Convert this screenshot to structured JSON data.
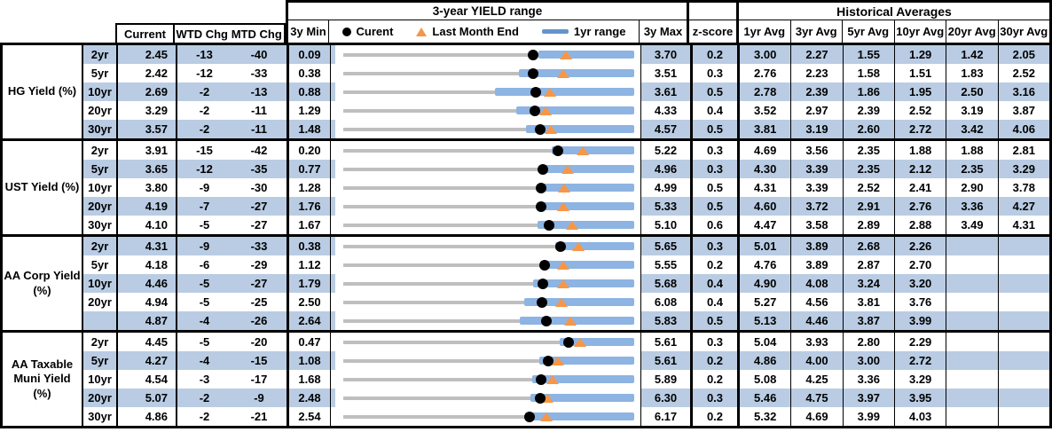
{
  "header": {
    "chart_title": "3-year YIELD range",
    "hist_title": "Historical Averages",
    "current": "Current",
    "wtd_chg": "WTD Chg",
    "mtd_chg": "MTD Chg",
    "min_3y": "3y Min",
    "max_3y": "3y Max",
    "z_score": "z-score",
    "avg_cols": [
      "1yr Avg",
      "3yr Avg",
      "5yr Avg",
      "10yr Avg",
      "20yr Avg",
      "30yr Avg"
    ],
    "legend": {
      "current": "Curent",
      "last_month_end": "Last Month End",
      "range_1yr": "1yr range"
    }
  },
  "colors": {
    "stripe": "#b9cce3",
    "bar": "#8db4e2",
    "legend_bar": "#6593cd",
    "track": "#bfbfbf",
    "triangle": "#f79646",
    "dot": "#000000"
  },
  "chart_data": {
    "type": "table",
    "title": "3-year YIELD range",
    "legend_entries": [
      "Curent",
      "Last Month End",
      "1yr range"
    ],
    "columns": [
      "Current",
      "WTD Chg",
      "MTD Chg",
      "3y Min",
      "3-year YIELD range",
      "3y Max",
      "z-score",
      "1yr Avg",
      "3yr Avg",
      "5yr Avg",
      "10yr Avg",
      "20yr Avg",
      "30yr Avg"
    ],
    "range_chart_note": "Each row plots a track from 3y Min to 3y Max; blue bar = 1yr range (low estimated as bar_lo, high = 3y Max); black dot = Current; orange triangle = last month end (Current - MTD Chg/100).",
    "sections": [
      {
        "label_lines": [
          "HG Yield (%)"
        ],
        "rows": [
          {
            "tenor": "2yr",
            "current": "2.45",
            "wtd": "-13",
            "mtd": "-40",
            "min": "0.09",
            "max": "3.70",
            "z": "0.2",
            "avgs": [
              "3.00",
              "2.27",
              "1.55",
              "1.29",
              "1.42",
              "2.05"
            ],
            "bar_lo": 2.51
          },
          {
            "tenor": "5yr",
            "current": "2.42",
            "wtd": "-12",
            "mtd": "-33",
            "min": "0.38",
            "max": "3.51",
            "z": "0.3",
            "avgs": [
              "2.76",
              "2.23",
              "1.58",
              "1.51",
              "1.83",
              "2.52"
            ],
            "bar_lo": 2.27
          },
          {
            "tenor": "10yr",
            "current": "2.69",
            "wtd": "-2",
            "mtd": "-13",
            "min": "0.88",
            "max": "3.61",
            "z": "0.5",
            "avgs": [
              "2.78",
              "2.39",
              "1.86",
              "1.95",
              "2.50",
              "3.16"
            ],
            "bar_lo": 2.3
          },
          {
            "tenor": "20yr",
            "current": "3.29",
            "wtd": "-2",
            "mtd": "-11",
            "min": "1.29",
            "max": "4.33",
            "z": "0.4",
            "avgs": [
              "3.52",
              "2.97",
              "2.39",
              "2.52",
              "3.19",
              "3.87"
            ],
            "bar_lo": 3.1
          },
          {
            "tenor": "30yr",
            "current": "3.57",
            "wtd": "-2",
            "mtd": "-11",
            "min": "1.48",
            "max": "4.57",
            "z": "0.5",
            "avgs": [
              "3.81",
              "3.19",
              "2.60",
              "2.72",
              "3.42",
              "4.06"
            ],
            "bar_lo": 3.42
          }
        ]
      },
      {
        "label_lines": [
          "UST Yield (%)"
        ],
        "rows": [
          {
            "tenor": "2yr",
            "current": "3.91",
            "wtd": "-15",
            "mtd": "-42",
            "min": "0.20",
            "max": "5.22",
            "z": "0.3",
            "avgs": [
              "4.69",
              "3.56",
              "2.35",
              "1.88",
              "1.88",
              "2.81"
            ],
            "bar_lo": 3.8
          },
          {
            "tenor": "5yr",
            "current": "3.65",
            "wtd": "-12",
            "mtd": "-35",
            "min": "0.77",
            "max": "4.96",
            "z": "0.3",
            "avgs": [
              "4.30",
              "3.39",
              "2.35",
              "2.12",
              "2.35",
              "3.29"
            ],
            "bar_lo": 3.63
          },
          {
            "tenor": "10yr",
            "current": "3.80",
            "wtd": "-9",
            "mtd": "-30",
            "min": "1.28",
            "max": "4.99",
            "z": "0.5",
            "avgs": [
              "4.31",
              "3.39",
              "2.52",
              "2.41",
              "2.90",
              "3.78"
            ],
            "bar_lo": 3.78
          },
          {
            "tenor": "20yr",
            "current": "4.19",
            "wtd": "-7",
            "mtd": "-27",
            "min": "1.76",
            "max": "5.33",
            "z": "0.5",
            "avgs": [
              "4.60",
              "3.72",
              "2.91",
              "2.76",
              "3.36",
              "4.27"
            ],
            "bar_lo": 4.13
          },
          {
            "tenor": "30yr",
            "current": "4.10",
            "wtd": "-5",
            "mtd": "-27",
            "min": "1.67",
            "max": "5.10",
            "z": "0.6",
            "avgs": [
              "4.47",
              "3.58",
              "2.89",
              "2.88",
              "3.49",
              "4.31"
            ],
            "bar_lo": 3.96
          }
        ]
      },
      {
        "label_lines": [
          "AA Corp Yield",
          "(%)"
        ],
        "rows": [
          {
            "tenor": "2yr",
            "current": "4.31",
            "wtd": "-9",
            "mtd": "-33",
            "min": "0.38",
            "max": "5.65",
            "z": "0.3",
            "avgs": [
              "5.01",
              "3.89",
              "2.68",
              "2.26",
              "",
              ""
            ],
            "bar_lo": 4.22
          },
          {
            "tenor": "5yr",
            "current": "4.18",
            "wtd": "-6",
            "mtd": "-29",
            "min": "1.12",
            "max": "5.55",
            "z": "0.2",
            "avgs": [
              "4.76",
              "3.89",
              "2.87",
              "2.70",
              "",
              ""
            ],
            "bar_lo": 4.12
          },
          {
            "tenor": "10yr",
            "current": "4.46",
            "wtd": "-5",
            "mtd": "-27",
            "min": "1.79",
            "max": "5.68",
            "z": "0.4",
            "avgs": [
              "4.90",
              "4.08",
              "3.24",
              "3.20",
              "",
              ""
            ],
            "bar_lo": 4.33
          },
          {
            "tenor": "20yr",
            "current": "4.94",
            "wtd": "-5",
            "mtd": "-25",
            "min": "2.50",
            "max": "6.08",
            "z": "0.4",
            "avgs": [
              "5.27",
              "4.56",
              "3.81",
              "3.76",
              "",
              ""
            ],
            "bar_lo": 4.73
          },
          {
            "tenor": "",
            "current": "4.87",
            "wtd": "-4",
            "mtd": "-26",
            "min": "2.64",
            "max": "5.83",
            "z": "0.5",
            "avgs": [
              "5.13",
              "4.46",
              "3.87",
              "3.99",
              "",
              ""
            ],
            "bar_lo": 4.58
          }
        ]
      },
      {
        "label_lines": [
          "AA Taxable",
          "Muni Yield",
          "(%)"
        ],
        "rows": [
          {
            "tenor": "2yr",
            "current": "4.45",
            "wtd": "-5",
            "mtd": "-20",
            "min": "0.47",
            "max": "5.61",
            "z": "0.3",
            "avgs": [
              "5.04",
              "3.93",
              "2.80",
              "2.29",
              "",
              ""
            ],
            "bar_lo": 4.29
          },
          {
            "tenor": "5yr",
            "current": "4.27",
            "wtd": "-4",
            "mtd": "-15",
            "min": "1.08",
            "max": "5.61",
            "z": "0.2",
            "avgs": [
              "4.86",
              "4.00",
              "3.00",
              "2.72",
              "",
              ""
            ],
            "bar_lo": 4.13
          },
          {
            "tenor": "10yr",
            "current": "4.54",
            "wtd": "-3",
            "mtd": "-17",
            "min": "1.68",
            "max": "5.89",
            "z": "0.2",
            "avgs": [
              "5.08",
              "4.25",
              "3.36",
              "3.29",
              "",
              ""
            ],
            "bar_lo": 4.42
          },
          {
            "tenor": "20yr",
            "current": "5.07",
            "wtd": "-2",
            "mtd": "-9",
            "min": "2.48",
            "max": "6.30",
            "z": "0.3",
            "avgs": [
              "5.46",
              "4.75",
              "3.97",
              "3.95",
              "",
              ""
            ],
            "bar_lo": 4.94
          },
          {
            "tenor": "30yr",
            "current": "4.86",
            "wtd": "-2",
            "mtd": "-21",
            "min": "2.54",
            "max": "6.17",
            "z": "0.2",
            "avgs": [
              "5.32",
              "4.69",
              "3.99",
              "4.03",
              "",
              ""
            ],
            "bar_lo": 4.81
          }
        ]
      }
    ]
  }
}
